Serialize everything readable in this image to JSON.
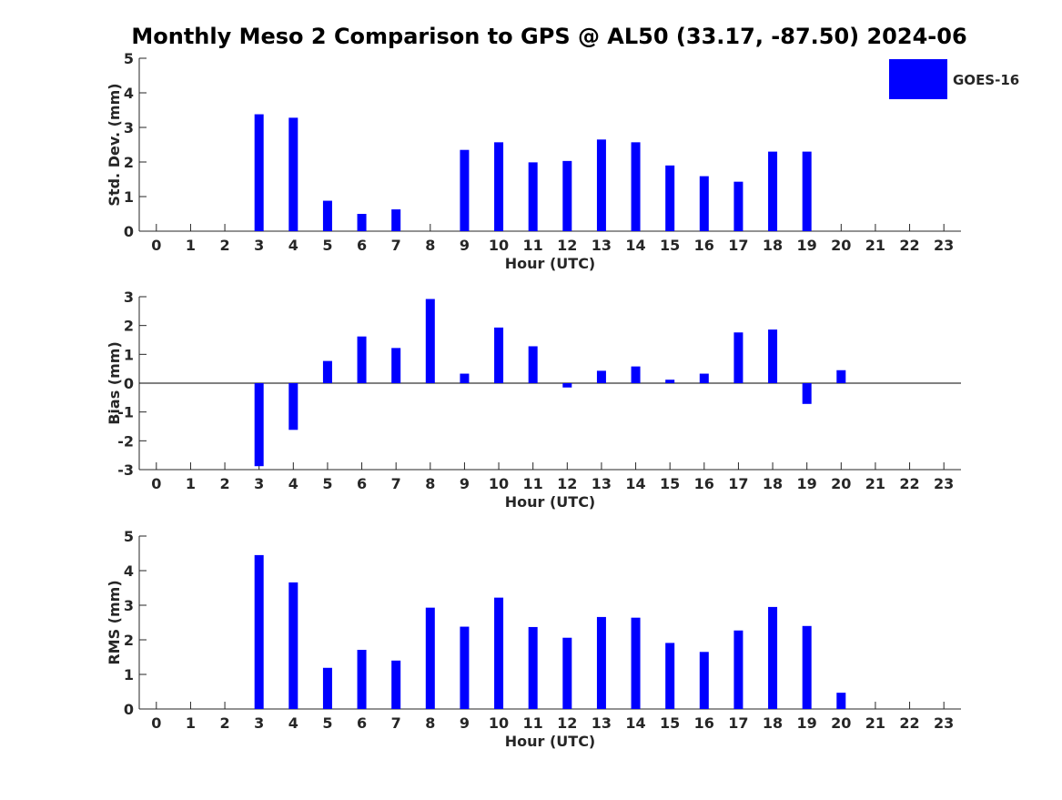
{
  "figure": {
    "title": "Monthly Meso 2 Comparison to GPS @ AL50 (33.17, -87.50) 2024-06",
    "bar_color": "#0000ff",
    "axis_color": "#262626",
    "legend_label": "GOES-16"
  },
  "chart_data": [
    {
      "type": "bar",
      "ylabel": "Std. Dev. (mm)",
      "xlabel": "Hour (UTC)",
      "ylim": [
        0,
        5
      ],
      "yticks": [
        0,
        1,
        2,
        3,
        4,
        5
      ],
      "grid": false,
      "legend": "top-right",
      "categories": [
        "0",
        "1",
        "2",
        "3",
        "4",
        "5",
        "6",
        "7",
        "8",
        "9",
        "10",
        "11",
        "12",
        "13",
        "14",
        "15",
        "16",
        "17",
        "18",
        "19",
        "20",
        "21",
        "22",
        "23"
      ],
      "series": [
        {
          "name": "GOES-16",
          "values": [
            null,
            null,
            null,
            3.38,
            3.28,
            0.88,
            0.5,
            0.63,
            null,
            2.35,
            2.57,
            1.99,
            2.03,
            2.65,
            2.57,
            1.9,
            1.59,
            1.43,
            2.3,
            2.3,
            null,
            null,
            null,
            null
          ]
        }
      ]
    },
    {
      "type": "bar",
      "ylabel": "Bias (mm)",
      "xlabel": "Hour (UTC)",
      "ylim": [
        -3,
        3
      ],
      "yticks": [
        -3,
        -2,
        -1,
        0,
        1,
        2,
        3
      ],
      "grid": false,
      "zero_line": true,
      "categories": [
        "0",
        "1",
        "2",
        "3",
        "4",
        "5",
        "6",
        "7",
        "8",
        "9",
        "10",
        "11",
        "12",
        "13",
        "14",
        "15",
        "16",
        "17",
        "18",
        "19",
        "20",
        "21",
        "22",
        "23"
      ],
      "series": [
        {
          "name": "GOES-16",
          "values": [
            null,
            null,
            null,
            -2.88,
            -1.62,
            0.77,
            1.62,
            1.22,
            2.92,
            0.33,
            1.93,
            1.28,
            -0.15,
            0.43,
            0.58,
            0.12,
            0.33,
            1.76,
            1.86,
            -0.72,
            0.45,
            null,
            null,
            null
          ]
        }
      ]
    },
    {
      "type": "bar",
      "ylabel": "RMS (mm)",
      "xlabel": "Hour (UTC)",
      "ylim": [
        0,
        5
      ],
      "yticks": [
        0,
        1,
        2,
        3,
        4,
        5
      ],
      "grid": false,
      "categories": [
        "0",
        "1",
        "2",
        "3",
        "4",
        "5",
        "6",
        "7",
        "8",
        "9",
        "10",
        "11",
        "12",
        "13",
        "14",
        "15",
        "16",
        "17",
        "18",
        "19",
        "20",
        "21",
        "22",
        "23"
      ],
      "series": [
        {
          "name": "GOES-16",
          "values": [
            null,
            null,
            null,
            4.45,
            3.66,
            1.19,
            1.71,
            1.4,
            2.93,
            2.38,
            3.22,
            2.37,
            2.06,
            2.66,
            2.64,
            1.91,
            1.65,
            2.27,
            2.95,
            2.4,
            0.47,
            null,
            null,
            null
          ]
        }
      ]
    }
  ]
}
